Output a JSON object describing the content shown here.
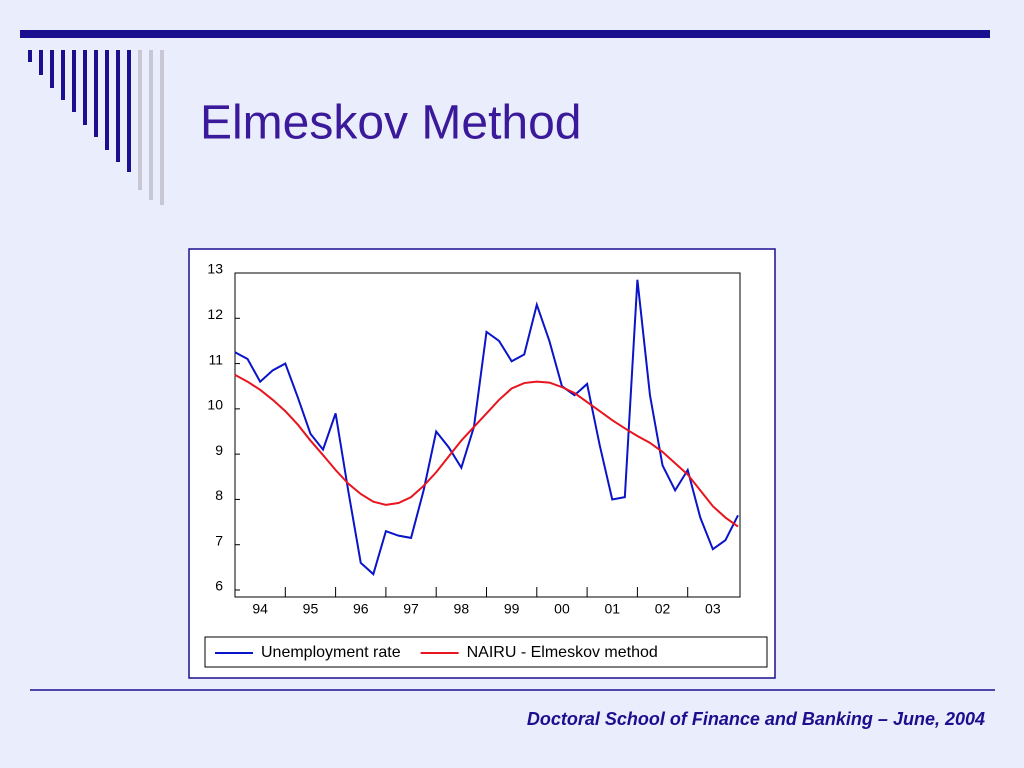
{
  "title": "Elmeskov Method",
  "footer": "Doctoral School of Finance and Banking – June, 2004",
  "chart_data": {
    "type": "line",
    "x": [
      1994,
      1994.25,
      1994.5,
      1994.75,
      1995,
      1995.25,
      1995.5,
      1995.75,
      1996,
      1996.25,
      1996.5,
      1996.75,
      1997,
      1997.25,
      1997.5,
      1997.75,
      1998,
      1998.25,
      1998.5,
      1998.75,
      1999,
      1999.25,
      1999.5,
      1999.75,
      2000,
      2000.25,
      2000.5,
      2000.75,
      2001,
      2001.25,
      2001.5,
      2001.75,
      2002,
      2002.25,
      2002.5,
      2002.75,
      2003,
      2003.25,
      2003.5,
      2003.75,
      2004
    ],
    "series": [
      {
        "name": "Unemployment rate",
        "color": "#0a14c8",
        "values": [
          11.25,
          11.1,
          10.6,
          10.85,
          11.0,
          10.25,
          9.45,
          9.1,
          9.9,
          8.2,
          6.6,
          6.35,
          7.3,
          7.2,
          7.15,
          8.2,
          9.5,
          9.15,
          8.7,
          9.6,
          11.7,
          11.5,
          11.05,
          11.2,
          12.3,
          11.5,
          10.5,
          10.3,
          10.55,
          9.2,
          8.0,
          8.05,
          12.85,
          10.3,
          8.75,
          8.2,
          8.65,
          7.6,
          6.9,
          7.1,
          7.65
        ]
      },
      {
        "name": "NAIRU - Elmeskov method",
        "color": "#e8141e",
        "values": [
          10.75,
          10.6,
          10.42,
          10.2,
          9.95,
          9.65,
          9.3,
          8.98,
          8.65,
          8.35,
          8.12,
          7.95,
          7.88,
          7.92,
          8.05,
          8.3,
          8.6,
          8.95,
          9.3,
          9.6,
          9.9,
          10.2,
          10.45,
          10.57,
          10.6,
          10.58,
          10.48,
          10.35,
          10.15,
          9.95,
          9.75,
          9.57,
          9.4,
          9.25,
          9.05,
          8.8,
          8.55,
          8.2,
          7.85,
          7.6,
          7.4
        ]
      }
    ],
    "xlim": [
      1994,
      2004
    ],
    "xticks": [
      {
        "value": 1994.5,
        "label": "94"
      },
      {
        "value": 1995.5,
        "label": "95"
      },
      {
        "value": 1996.5,
        "label": "96"
      },
      {
        "value": 1997.5,
        "label": "97"
      },
      {
        "value": 1998.5,
        "label": "98"
      },
      {
        "value": 1999.5,
        "label": "99"
      },
      {
        "value": 2000.5,
        "label": "00"
      },
      {
        "value": 2001.5,
        "label": "01"
      },
      {
        "value": 2002.5,
        "label": "02"
      },
      {
        "value": 2003.5,
        "label": "03"
      }
    ],
    "ylim": [
      6,
      13
    ],
    "yticks": [
      6,
      7,
      8,
      9,
      10,
      11,
      12,
      13
    ],
    "legend": "bottom"
  }
}
